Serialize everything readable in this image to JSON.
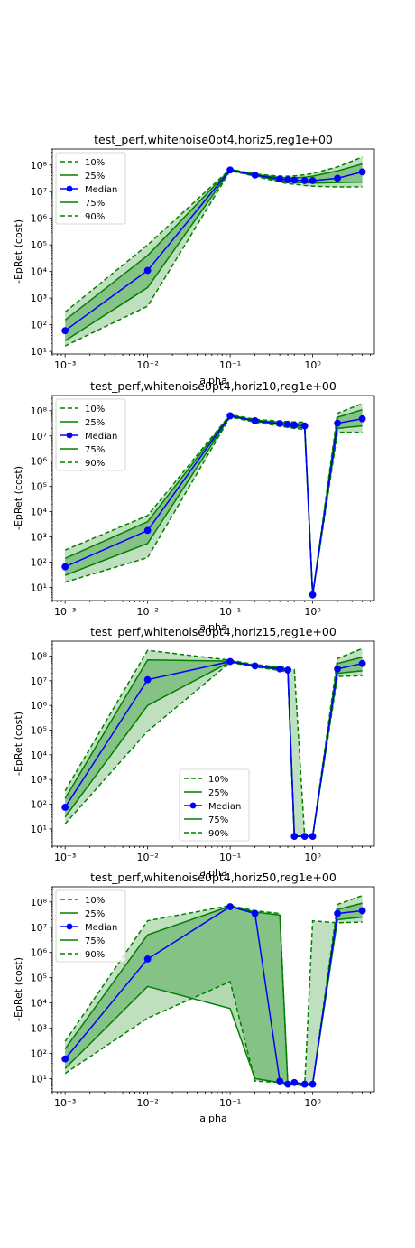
{
  "chart_data": [
    {
      "type": "area",
      "title": "test_perf,whitenoise0pt4,horiz5,reg1e+00",
      "xlabel": "alpha",
      "ylabel": "-EpRet (cost)",
      "xscale": "log",
      "yscale": "log",
      "xlim": [
        0.0007,
        5.6
      ],
      "ylim": [
        8,
        400000000
      ],
      "xticks": [
        "10⁻³",
        "10⁻²",
        "10⁻¹",
        "10⁰"
      ],
      "yticks": [
        "10¹",
        "10²",
        "10³",
        "10⁴",
        "10⁵",
        "10⁶",
        "10⁷",
        "10⁸"
      ],
      "legend_position": "upper left",
      "x": [
        0.001,
        0.01,
        0.1,
        0.2,
        0.4,
        0.5,
        0.6,
        0.8,
        1,
        2,
        4
      ],
      "series": [
        {
          "name": "10%",
          "values": [
            16,
            500,
            60000000,
            38000000,
            23000000,
            20000000,
            19000000,
            17000000,
            16000000,
            15000000,
            15000000
          ]
        },
        {
          "name": "25%",
          "values": [
            25,
            2500,
            62000000,
            40000000,
            26000000,
            24000000,
            22000000,
            22000000,
            21000000,
            22000000,
            23000000
          ]
        },
        {
          "name": "Median",
          "values": [
            60,
            11000,
            65000000,
            42000000,
            30000000,
            28000000,
            27000000,
            26000000,
            26000000,
            32000000,
            55000000
          ]
        },
        {
          "name": "75%",
          "values": [
            150,
            40000,
            68000000,
            44000000,
            34000000,
            33000000,
            33000000,
            35000000,
            38000000,
            60000000,
            110000000
          ]
        },
        {
          "name": "90%",
          "values": [
            300,
            100000,
            70000000,
            46000000,
            38000000,
            38000000,
            39000000,
            43000000,
            48000000,
            85000000,
            200000000
          ]
        }
      ]
    },
    {
      "type": "area",
      "title": "test_perf,whitenoise0pt4,horiz10,reg1e+00",
      "xlabel": "alpha",
      "ylabel": "-EpRet (cost)",
      "xscale": "log",
      "yscale": "log",
      "xlim": [
        0.0007,
        5.6
      ],
      "ylim": [
        3,
        400000000
      ],
      "xticks": [
        "10⁻³",
        "10⁻²",
        "10⁻¹",
        "10⁰"
      ],
      "yticks": [
        "10¹",
        "10²",
        "10³",
        "10⁴",
        "10⁵",
        "10⁶",
        "10⁷",
        "10⁸"
      ],
      "legend_position": "upper left",
      "x": [
        0.001,
        0.01,
        0.1,
        0.2,
        0.4,
        0.5,
        0.6,
        0.8,
        1,
        2,
        4
      ],
      "series": [
        {
          "name": "10%",
          "values": [
            16,
            150,
            56000000,
            35000000,
            25000000,
            22000000,
            20000000,
            18000000,
            5,
            14000000,
            14000000
          ]
        },
        {
          "name": "25%",
          "values": [
            30,
            550,
            60000000,
            38000000,
            28000000,
            25000000,
            23000000,
            21000000,
            5,
            20000000,
            25000000
          ]
        },
        {
          "name": "Median",
          "values": [
            65,
            1800,
            63000000,
            40000000,
            31000000,
            29000000,
            27000000,
            25000000,
            5,
            32000000,
            48000000
          ]
        },
        {
          "name": "75%",
          "values": [
            140,
            4000,
            66000000,
            42000000,
            35000000,
            33000000,
            31000000,
            30000000,
            5,
            55000000,
            110000000
          ]
        },
        {
          "name": "90%",
          "values": [
            300,
            7000,
            70000000,
            46000000,
            38000000,
            37000000,
            36000000,
            35000000,
            5,
            80000000,
            190000000
          ]
        }
      ]
    },
    {
      "type": "area",
      "title": "test_perf,whitenoise0pt4,horiz15,reg1e+00",
      "xlabel": "alpha",
      "ylabel": "-EpRet (cost)",
      "xscale": "log",
      "yscale": "log",
      "xlim": [
        0.0007,
        5.6
      ],
      "ylim": [
        2,
        400000000
      ],
      "xticks": [
        "10⁻³",
        "10⁻²",
        "10⁻¹",
        "10⁰"
      ],
      "yticks": [
        "10¹",
        "10²",
        "10³",
        "10⁴",
        "10⁵",
        "10⁶",
        "10⁷",
        "10⁸"
      ],
      "legend_position": "lower center",
      "x": [
        0.001,
        0.01,
        0.1,
        0.2,
        0.4,
        0.5,
        0.6,
        0.8,
        1,
        2,
        4
      ],
      "series": [
        {
          "name": "10%",
          "values": [
            16,
            90000,
            55000000,
            36000000,
            26000000,
            22000000,
            5,
            5,
            5,
            15000000,
            16000000
          ]
        },
        {
          "name": "25%",
          "values": [
            30,
            1000000,
            58000000,
            38000000,
            28000000,
            25000000,
            5,
            5,
            5,
            20000000,
            25000000
          ]
        },
        {
          "name": "Median",
          "values": [
            75,
            11000000,
            60000000,
            40000000,
            30000000,
            27000000,
            5,
            5,
            5,
            30000000,
            50000000
          ]
        },
        {
          "name": "75%",
          "values": [
            170,
            70000000,
            62000000,
            42000000,
            32000000,
            30000000,
            5,
            5,
            5,
            50000000,
            90000000
          ]
        },
        {
          "name": "90%",
          "values": [
            350,
            170000000,
            68000000,
            45000000,
            36000000,
            33000000,
            28000000,
            5,
            5,
            80000000,
            200000000
          ]
        }
      ]
    },
    {
      "type": "area",
      "title": "test_perf,whitenoise0pt4,horiz50,reg1e+00",
      "xlabel": "alpha",
      "ylabel": "-EpRet (cost)",
      "xscale": "log",
      "yscale": "log",
      "xlim": [
        0.0007,
        5.6
      ],
      "ylim": [
        3,
        400000000
      ],
      "xticks": [
        "10⁻³",
        "10⁻²",
        "10⁻¹",
        "10⁰"
      ],
      "yticks": [
        "10¹",
        "10²",
        "10³",
        "10⁴",
        "10⁵",
        "10⁶",
        "10⁷",
        "10⁸"
      ],
      "legend_position": "upper left",
      "x": [
        0.001,
        0.01,
        0.1,
        0.2,
        0.4,
        0.5,
        0.6,
        0.8,
        1,
        2,
        4
      ],
      "series": [
        {
          "name": "10%",
          "values": [
            16,
            2500,
            70000,
            8,
            7,
            6,
            6,
            5,
            18000000,
            15000000,
            16000000
          ]
        },
        {
          "name": "25%",
          "values": [
            25,
            45000,
            6000,
            10,
            7,
            6,
            6,
            5,
            6,
            20000000,
            25000000
          ]
        },
        {
          "name": "Median",
          "values": [
            60,
            550000,
            65000000,
            35000000,
            8,
            6,
            7,
            6,
            6,
            35000000,
            45000000
          ]
        },
        {
          "name": "75%",
          "values": [
            150,
            5000000,
            68000000,
            40000000,
            30000000,
            6,
            7,
            6,
            6,
            50000000,
            90000000
          ]
        },
        {
          "name": "90%",
          "values": [
            300,
            18000000,
            72000000,
            45000000,
            35000000,
            6,
            7,
            6,
            6,
            80000000,
            180000000
          ]
        }
      ]
    }
  ]
}
